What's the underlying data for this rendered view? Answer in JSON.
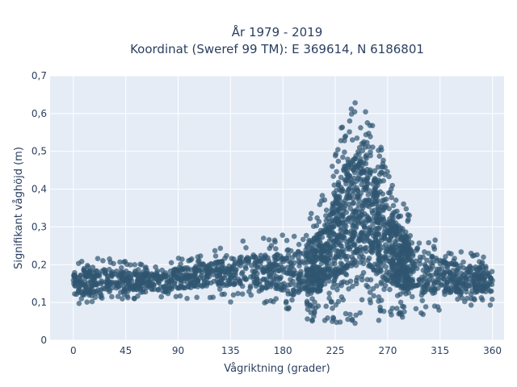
{
  "chart_data": {
    "type": "scatter",
    "title": "År 1979 - 2019",
    "subtitle": "Koordinat (Sweref 99 TM): E 369614, N 6186801",
    "xlabel": "Vågriktning (grader)",
    "ylabel": "Signifikant våghöjd (m)",
    "xlim": [
      -20,
      370
    ],
    "ylim": [
      0,
      0.7
    ],
    "x_ticks": [
      0,
      45,
      90,
      135,
      180,
      225,
      270,
      315,
      360
    ],
    "x_tick_labels": [
      "0",
      "45",
      "90",
      "135",
      "180",
      "225",
      "270",
      "315",
      "360"
    ],
    "y_ticks": [
      0,
      0.1,
      0.2,
      0.3,
      0.4,
      0.5,
      0.6,
      0.7
    ],
    "y_tick_labels": [
      "0",
      "0,1",
      "0,2",
      "0,3",
      "0,4",
      "0,5",
      "0,6",
      "0,7"
    ],
    "grid": true,
    "marker_color": "#2f5570",
    "plot_background": "#e5ecf6",
    "envelope": {
      "x": [
        0,
        10,
        20,
        30,
        45,
        60,
        75,
        90,
        105,
        120,
        135,
        150,
        165,
        180,
        190,
        200,
        210,
        220,
        230,
        240,
        250,
        260,
        270,
        280,
        290,
        300,
        315,
        330,
        345,
        360
      ],
      "y_min": [
        0.09,
        0.09,
        0.1,
        0.1,
        0.11,
        0.11,
        0.11,
        0.11,
        0.11,
        0.11,
        0.1,
        0.1,
        0.09,
        0.08,
        0.06,
        0.05,
        0.05,
        0.05,
        0.04,
        0.04,
        0.04,
        0.05,
        0.05,
        0.06,
        0.06,
        0.06,
        0.08,
        0.09,
        0.09,
        0.09
      ],
      "y_max": [
        0.21,
        0.21,
        0.22,
        0.22,
        0.21,
        0.2,
        0.2,
        0.22,
        0.23,
        0.24,
        0.25,
        0.27,
        0.27,
        0.28,
        0.29,
        0.32,
        0.36,
        0.43,
        0.58,
        0.66,
        0.67,
        0.55,
        0.46,
        0.38,
        0.33,
        0.3,
        0.26,
        0.24,
        0.23,
        0.22
      ]
    }
  }
}
